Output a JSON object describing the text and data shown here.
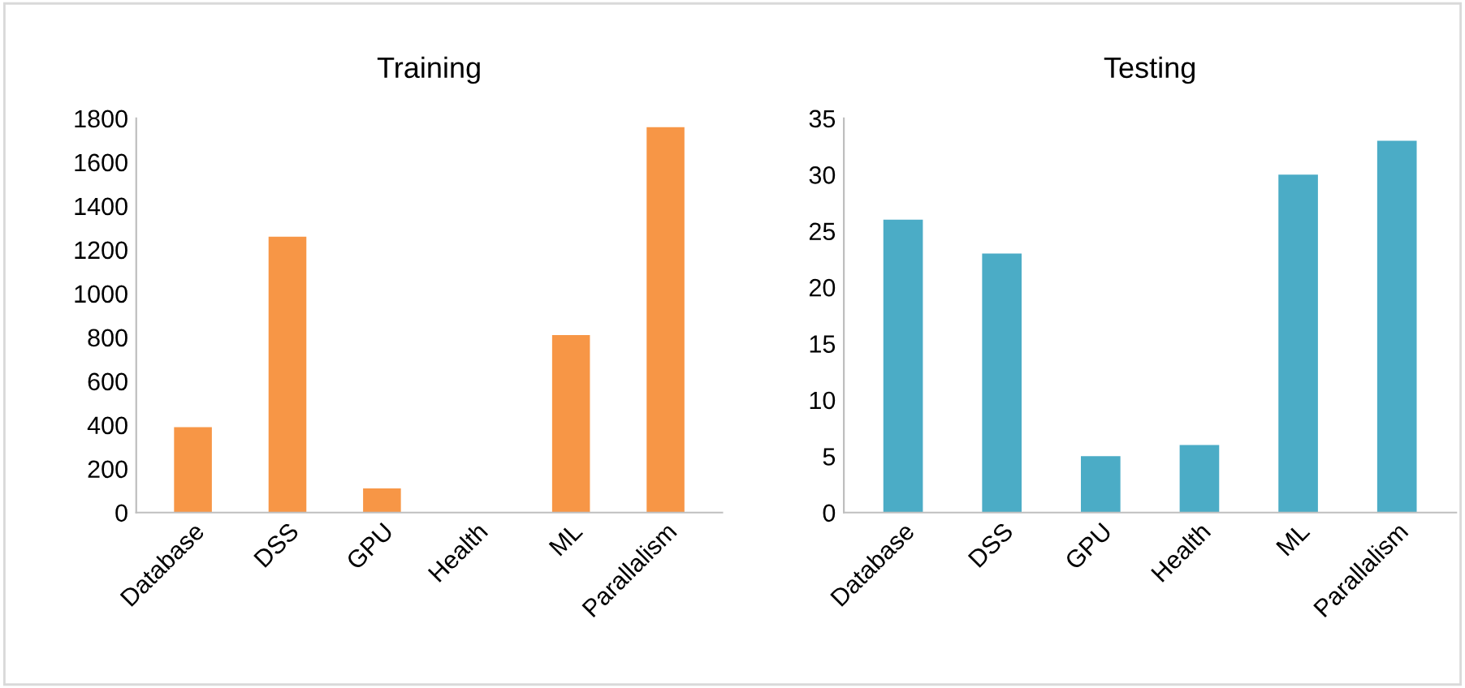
{
  "chart_data": [
    {
      "type": "bar",
      "title": "Training",
      "categories": [
        "Database",
        "DSS",
        "GPU",
        "Health",
        "ML",
        "Parallalism"
      ],
      "values": [
        390,
        1260,
        110,
        0,
        810,
        1760
      ],
      "color": "#f79646",
      "ylim": [
        0,
        1800
      ],
      "yticks": [
        0,
        200,
        400,
        600,
        800,
        1000,
        1200,
        1400,
        1600,
        1800
      ],
      "grid": false,
      "legend": false
    },
    {
      "type": "bar",
      "title": "Testing",
      "categories": [
        "Database",
        "DSS",
        "GPU",
        "Health",
        "ML",
        "Parallalism"
      ],
      "values": [
        26,
        23,
        5,
        6,
        30,
        33
      ],
      "color": "#4bacc6",
      "ylim": [
        0,
        35
      ],
      "yticks": [
        0,
        5,
        10,
        15,
        20,
        25,
        30,
        35
      ],
      "grid": false,
      "legend": false
    }
  ]
}
